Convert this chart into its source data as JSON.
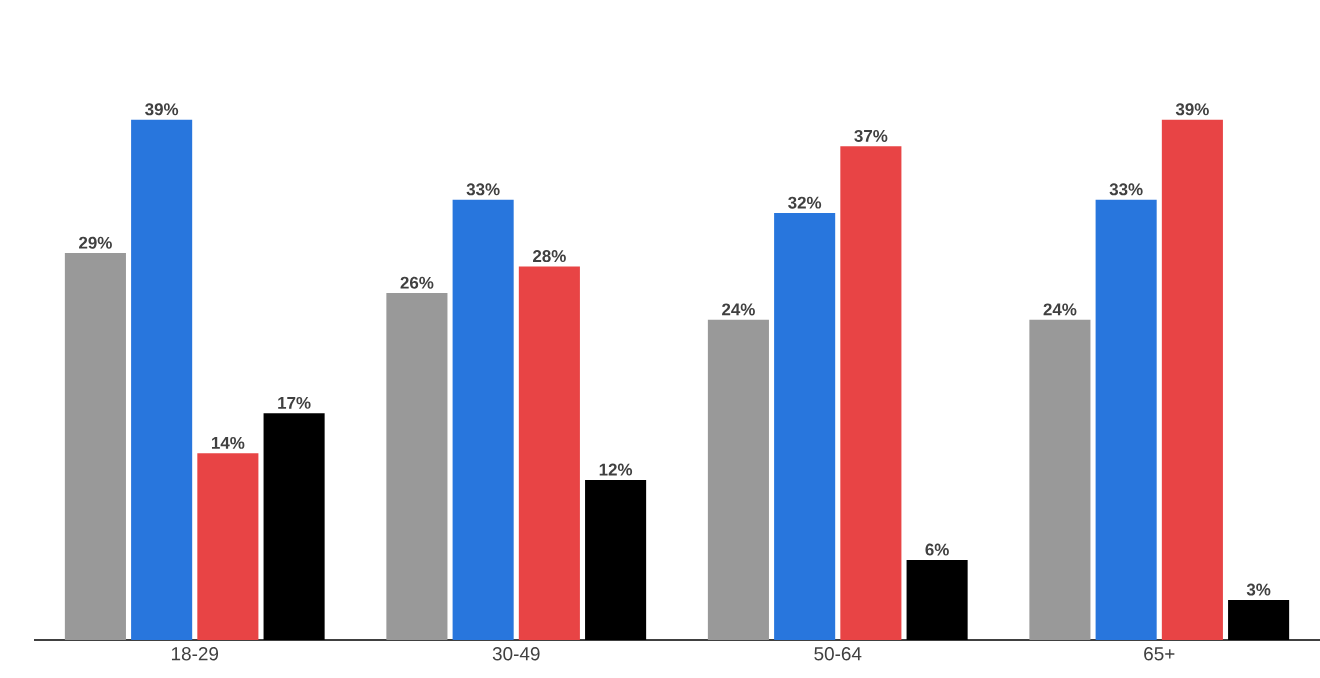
{
  "chart_data": {
    "type": "bar",
    "categories": [
      "18-29",
      "30-49",
      "50-64",
      "65+"
    ],
    "series": [
      {
        "color": "#999999",
        "values": [
          29,
          26,
          24,
          24
        ],
        "value_labels": [
          "29%",
          "26%",
          "24%",
          "24%"
        ]
      },
      {
        "color": "#2876dd",
        "values": [
          39,
          33,
          32,
          33
        ],
        "value_labels": [
          "39%",
          "33%",
          "32%",
          "33%"
        ]
      },
      {
        "color": "#e84445",
        "values": [
          14,
          28,
          37,
          39
        ],
        "value_labels": [
          "14%",
          "28%",
          "37%",
          "39%"
        ]
      },
      {
        "color": "#000000",
        "values": [
          17,
          12,
          6,
          3
        ],
        "value_labels": [
          "17%",
          "12%",
          "6%",
          "3%"
        ]
      }
    ],
    "tick_labels": "x"
  }
}
